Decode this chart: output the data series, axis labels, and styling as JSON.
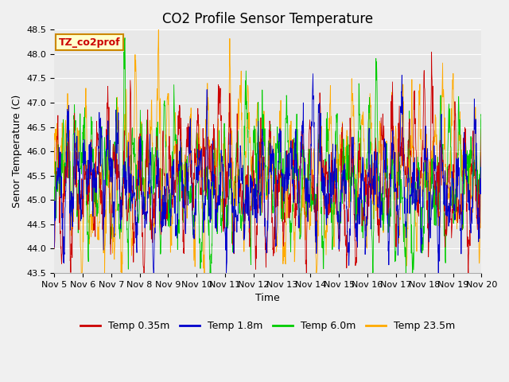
{
  "title": "CO2 Profile Sensor Temperature",
  "ylabel": "Senor Temperature (C)",
  "xlabel": "Time",
  "label_box_text": "TZ_co2prof",
  "ylim": [
    43.5,
    48.5
  ],
  "yticks": [
    43.5,
    44.0,
    44.5,
    45.0,
    45.5,
    46.0,
    46.5,
    47.0,
    47.5,
    48.0,
    48.5
  ],
  "date_labels": [
    "Nov 5",
    "Nov 6",
    "Nov 7",
    "Nov 8",
    "Nov 9",
    "Nov 10",
    "Nov 11",
    "Nov 12",
    "Nov 13",
    "Nov 14",
    "Nov 15",
    "Nov 16",
    "Nov 17",
    "Nov 18",
    "Nov 19",
    "Nov 20"
  ],
  "series_colors": [
    "#cc0000",
    "#0000cc",
    "#00cc00",
    "#ffaa00"
  ],
  "series_labels": [
    "Temp 0.35m",
    "Temp 1.8m",
    "Temp 6.0m",
    "Temp 23.5m"
  ],
  "fig_bg_color": "#f0f0f0",
  "plot_bg_color": "#e8e8e8",
  "label_box_bg": "#ffffcc",
  "label_box_border": "#cc8800",
  "label_box_text_color": "#cc0000",
  "title_fontsize": 12,
  "axis_label_fontsize": 9,
  "tick_fontsize": 8,
  "legend_fontsize": 9,
  "n_points": 1500
}
